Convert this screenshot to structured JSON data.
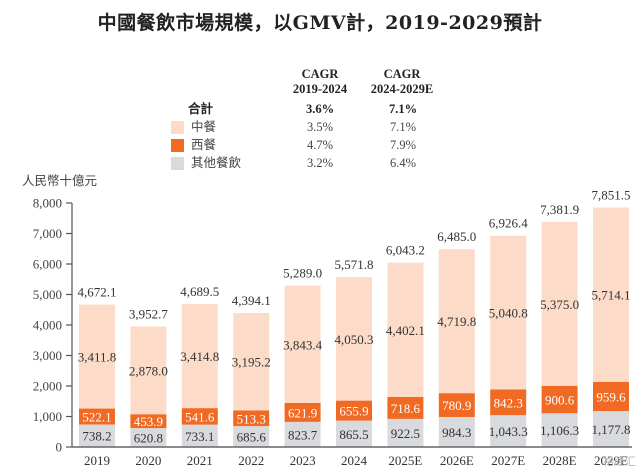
{
  "chart_data": {
    "type": "bar",
    "stacked": true,
    "title": "中國餐飲市場規模，以GMV計，2019-2029預計",
    "ylabel": "人民幣十億元",
    "xlabel": "",
    "ylim": [
      0,
      8000
    ],
    "yticks": [
      0,
      1000,
      2000,
      3000,
      4000,
      5000,
      6000,
      7000,
      8000
    ],
    "ytick_labels": [
      "0",
      "1,000",
      "2,000",
      "3,000",
      "4,000",
      "5,000",
      "6,000",
      "7,000",
      "8,000"
    ],
    "grid": false,
    "categories": [
      "2019",
      "2020",
      "2021",
      "2022",
      "2023",
      "2024",
      "2025E",
      "2026E",
      "2027E",
      "2028E",
      "2029E"
    ],
    "series": [
      {
        "name": "其他餐飲",
        "color": "#d9dadd",
        "values": [
          738.2,
          620.8,
          733.1,
          685.6,
          823.7,
          865.5,
          922.5,
          984.3,
          1043.3,
          1106.3,
          1177.8
        ],
        "labels": [
          "738.2",
          "620.8",
          "733.1",
          "685.6",
          "823.7",
          "865.5",
          "922.5",
          "984.3",
          "1,043.3",
          "1,106.3",
          "1,177.8"
        ]
      },
      {
        "name": "西餐",
        "color": "#f06a23",
        "values": [
          522.1,
          453.9,
          541.6,
          513.3,
          621.9,
          655.9,
          718.6,
          780.9,
          842.3,
          900.6,
          959.6
        ],
        "labels": [
          "522.1",
          "453.9",
          "541.6",
          "513.3",
          "621.9",
          "655.9",
          "718.6",
          "780.9",
          "842.3",
          "900.6",
          "959.6"
        ]
      },
      {
        "name": "中餐",
        "color": "#fcdcc8",
        "values": [
          3411.8,
          2878.0,
          3414.8,
          3195.2,
          3843.4,
          4050.3,
          4402.1,
          4719.8,
          5040.8,
          5375.0,
          5714.1
        ],
        "labels": [
          "3,411.8",
          "2,878.0",
          "3,414.8",
          "3,195.2",
          "3,843.4",
          "4,050.3",
          "4,402.1",
          "4,719.8",
          "5,040.8",
          "5,375.0",
          "5,714.1"
        ]
      }
    ],
    "totals": [
      4672.1,
      3952.7,
      4689.5,
      4394.1,
      5289.0,
      5571.8,
      6043.2,
      6485.0,
      6926.4,
      7381.9,
      7851.5
    ],
    "total_labels": [
      "4,672.1",
      "3,952.7",
      "4,689.5",
      "4,394.1",
      "5,289.0",
      "5,571.8",
      "6,043.2",
      "6,485.0",
      "6,926.4",
      "7,381.9",
      "7,851.5"
    ],
    "legend": "top-center",
    "cagr": {
      "headers": [
        {
          "line1": "CAGR",
          "line2": "2019-2024"
        },
        {
          "line1": "CAGR",
          "line2": "2024-2029E"
        }
      ],
      "rows": [
        {
          "label": "合計",
          "v1": "3.6%",
          "v2": "7.1%",
          "bold": true,
          "color": null
        },
        {
          "label": "中餐",
          "v1": "3.5%",
          "v2": "7.1%",
          "bold": false,
          "color": "#fcdcc8"
        },
        {
          "label": "西餐",
          "v1": "4.7%",
          "v2": "7.9%",
          "bold": false,
          "color": "#f06a23"
        },
        {
          "label": "其他餐飲",
          "v1": "3.2%",
          "v2": "6.4%",
          "bold": false,
          "color": "#d9dadd"
        }
      ]
    }
  },
  "watermark": "格隆汇"
}
